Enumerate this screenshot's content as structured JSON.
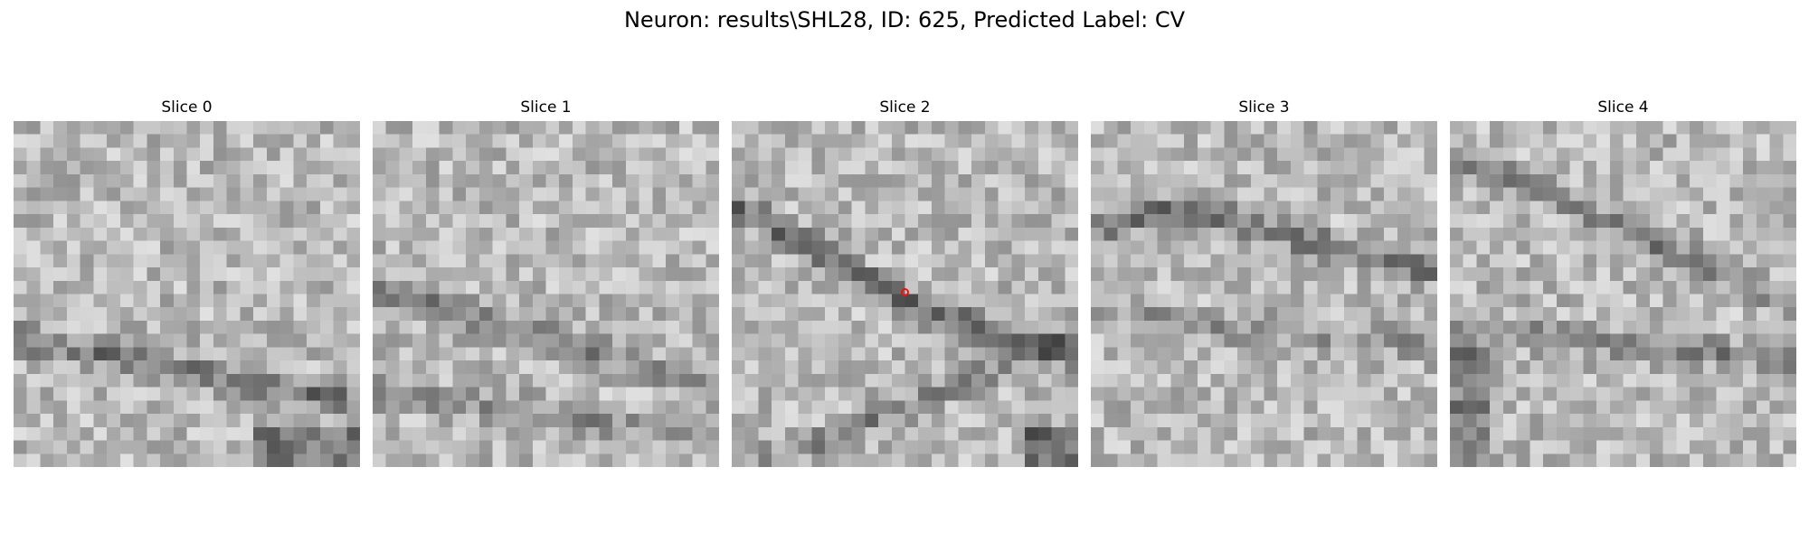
{
  "figure": {
    "title": "Neuron: results\\SHL28, ID: 625, Predicted Label: CV"
  },
  "slices": [
    {
      "title": "Slice 0",
      "has_marker": false
    },
    {
      "title": "Slice 1",
      "has_marker": false
    },
    {
      "title": "Slice 2",
      "has_marker": true
    },
    {
      "title": "Slice 3",
      "has_marker": false
    },
    {
      "title": "Slice 4",
      "has_marker": false
    }
  ],
  "colors": {
    "background": "#ffffff",
    "marker": "#ee1111",
    "colormap": "gray"
  }
}
